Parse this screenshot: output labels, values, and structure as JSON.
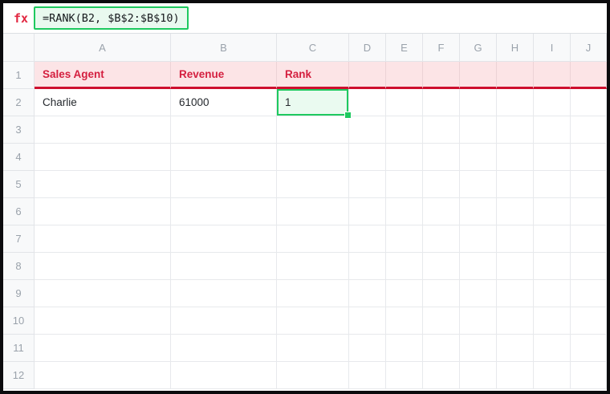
{
  "formula_bar": {
    "fx_label": "fx",
    "formula": "=RANK(B2, $B$2:$B$10)"
  },
  "grid": {
    "columns": [
      "A",
      "B",
      "C",
      "D",
      "E",
      "F",
      "G",
      "H",
      "I",
      "J"
    ],
    "rows": [
      "1",
      "2",
      "3",
      "4",
      "5",
      "6",
      "7",
      "8",
      "9",
      "10",
      "11",
      "12"
    ],
    "cells": {
      "A1": "Sales Agent",
      "B1": "Revenue",
      "C1": "Rank",
      "A2": "Charlie",
      "B2": "61000",
      "C2": "1"
    },
    "styled_header_row": "1",
    "selected_cell": "C2"
  },
  "colors": {
    "frame": "#0b0b0d",
    "accent_red_text": "#d41f3f",
    "header_row_fill": "#fce4e6",
    "header_row_divider": "#ce0f2e",
    "selection_green": "#1ec95f",
    "selection_fill": "#eafaf0",
    "formula_box_fill": "#e9f9ef",
    "gutter_fill": "#f8f9fa",
    "gutter_text": "#9aa2ab",
    "gridline": "#e7e9ec"
  }
}
